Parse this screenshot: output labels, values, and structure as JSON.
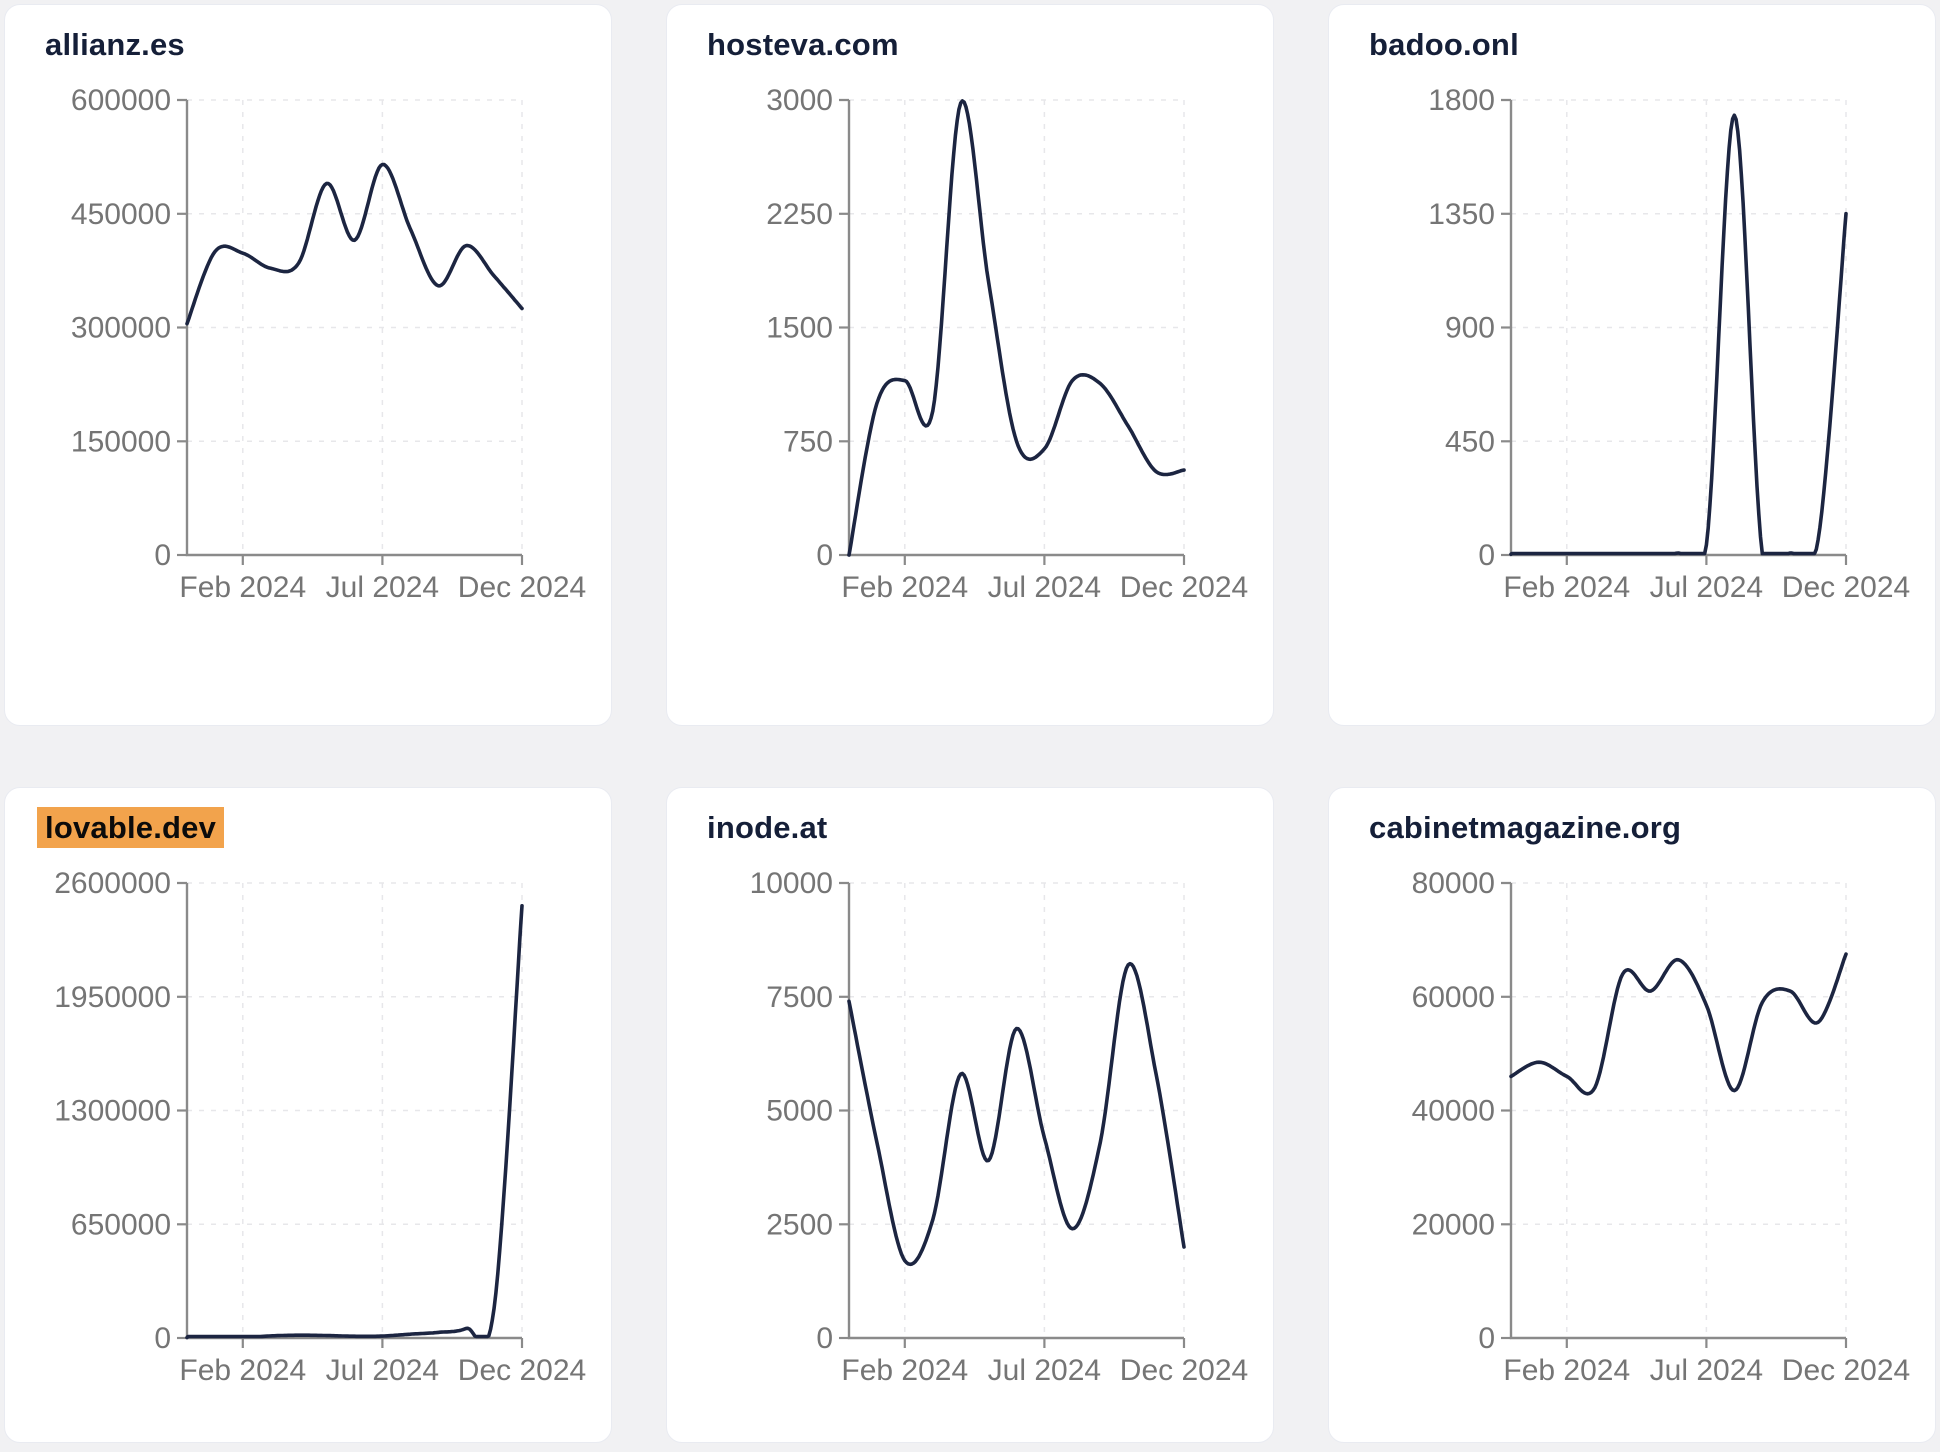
{
  "page": {
    "background_color": "#f1f1f3",
    "card_background": "#ffffff",
    "card_border_color": "#e9ebf1",
    "title_color": "#151f38",
    "highlight_color": "#f2a34c",
    "line_color": "#1c2541",
    "axis_color": "#8a8a8a",
    "tick_label_color": "#757575",
    "grid_color": "#e7e7ea"
  },
  "chart_data": [
    {
      "type": "line",
      "title": "allianz.es",
      "highlighted": false,
      "grid": true,
      "legend": "none",
      "x": [
        "Dec 2023",
        "Jan 2024",
        "Feb 2024",
        "Mar 2024",
        "Apr 2024",
        "May 2024",
        "Jun 2024",
        "Jul 2024",
        "Aug 2024",
        "Sep 2024",
        "Oct 2024",
        "Nov 2024",
        "Dec 2024"
      ],
      "values": [
        305000,
        400000,
        398000,
        378000,
        385000,
        490000,
        415000,
        515000,
        430000,
        355000,
        408000,
        368000,
        325000
      ],
      "ylim": [
        0,
        600000
      ],
      "y_ticks": [
        0,
        150000,
        300000,
        450000,
        600000
      ],
      "x_tick_labels": [
        "Feb 2024",
        "Jul 2024",
        "Dec 2024"
      ],
      "x_tick_indices": [
        2,
        7,
        12
      ]
    },
    {
      "type": "line",
      "title": "hosteva.com",
      "highlighted": false,
      "grid": true,
      "legend": "none",
      "x": [
        "Dec 2023",
        "Jan 2024",
        "Feb 2024",
        "Mar 2024",
        "Apr 2024",
        "May 2024",
        "Jun 2024",
        "Jul 2024",
        "Aug 2024",
        "Sep 2024",
        "Oct 2024",
        "Nov 2024",
        "Dec 2024"
      ],
      "values": [
        0,
        1000,
        1150,
        950,
        2980,
        1800,
        750,
        700,
        1150,
        1130,
        850,
        550,
        560
      ],
      "ylim": [
        0,
        3000
      ],
      "y_ticks": [
        0,
        750,
        1500,
        2250,
        3000
      ],
      "x_tick_labels": [
        "Feb 2024",
        "Jul 2024",
        "Dec 2024"
      ],
      "x_tick_indices": [
        2,
        7,
        12
      ]
    },
    {
      "type": "line",
      "title": "badoo.onl",
      "highlighted": false,
      "grid": true,
      "legend": "none",
      "x": [
        "Dec 2023",
        "Jan 2024",
        "Feb 2024",
        "Mar 2024",
        "Apr 2024",
        "May 2024",
        "Jun 2024",
        "Jul 2024",
        "Aug 2024",
        "Sep 2024",
        "Oct 2024",
        "Nov 2024",
        "Dec 2024"
      ],
      "values": [
        3,
        3,
        3,
        3,
        3,
        4,
        8,
        40,
        1740,
        5,
        8,
        60,
        1350
      ],
      "ylim": [
        0,
        1800
      ],
      "y_ticks": [
        0,
        450,
        900,
        1350,
        1800
      ],
      "x_tick_labels": [
        "Feb 2024",
        "Jul 2024",
        "Dec 2024"
      ],
      "x_tick_indices": [
        2,
        7,
        12
      ]
    },
    {
      "type": "line",
      "title": "lovable.dev",
      "highlighted": true,
      "grid": true,
      "legend": "none",
      "x": [
        "Dec 2023",
        "Jan 2024",
        "Feb 2024",
        "Mar 2024",
        "Apr 2024",
        "May 2024",
        "Jun 2024",
        "Jul 2024",
        "Aug 2024",
        "Sep 2024",
        "Oct 2024",
        "Nov 2024",
        "Dec 2024"
      ],
      "values": [
        2000,
        2500,
        3000,
        12000,
        16000,
        14000,
        10000,
        11000,
        22000,
        32000,
        55000,
        170000,
        2470000
      ],
      "ylim": [
        0,
        2600000
      ],
      "y_ticks": [
        0,
        650000,
        1300000,
        1950000,
        2600000
      ],
      "x_tick_labels": [
        "Feb 2024",
        "Jul 2024",
        "Dec 2024"
      ],
      "x_tick_indices": [
        2,
        7,
        12
      ]
    },
    {
      "type": "line",
      "title": "inode.at",
      "highlighted": false,
      "grid": true,
      "legend": "none",
      "x": [
        "Dec 2023",
        "Jan 2024",
        "Feb 2024",
        "Mar 2024",
        "Apr 2024",
        "May 2024",
        "Jun 2024",
        "Jul 2024",
        "Aug 2024",
        "Sep 2024",
        "Oct 2024",
        "Nov 2024",
        "Dec 2024"
      ],
      "values": [
        7400,
        4300,
        1700,
        2600,
        5800,
        3900,
        6800,
        4400,
        2400,
        4300,
        8200,
        5800,
        2000
      ],
      "ylim": [
        0,
        10000
      ],
      "y_ticks": [
        0,
        2500,
        5000,
        7500,
        10000
      ],
      "x_tick_labels": [
        "Feb 2024",
        "Jul 2024",
        "Dec 2024"
      ],
      "x_tick_indices": [
        2,
        7,
        12
      ]
    },
    {
      "type": "line",
      "title": "cabinetmagazine.org",
      "highlighted": false,
      "grid": true,
      "legend": "none",
      "x": [
        "Dec 2023",
        "Jan 2024",
        "Feb 2024",
        "Mar 2024",
        "Apr 2024",
        "May 2024",
        "Jun 2024",
        "Jul 2024",
        "Aug 2024",
        "Sep 2024",
        "Oct 2024",
        "Nov 2024",
        "Dec 2024"
      ],
      "values": [
        46000,
        48500,
        46000,
        44000,
        64000,
        61000,
        66500,
        58500,
        43500,
        59000,
        61000,
        55500,
        67500
      ],
      "ylim": [
        0,
        80000
      ],
      "y_ticks": [
        0,
        20000,
        40000,
        60000,
        80000
      ],
      "x_tick_labels": [
        "Feb 2024",
        "Jul 2024",
        "Dec 2024"
      ],
      "x_tick_indices": [
        2,
        7,
        12
      ]
    }
  ]
}
